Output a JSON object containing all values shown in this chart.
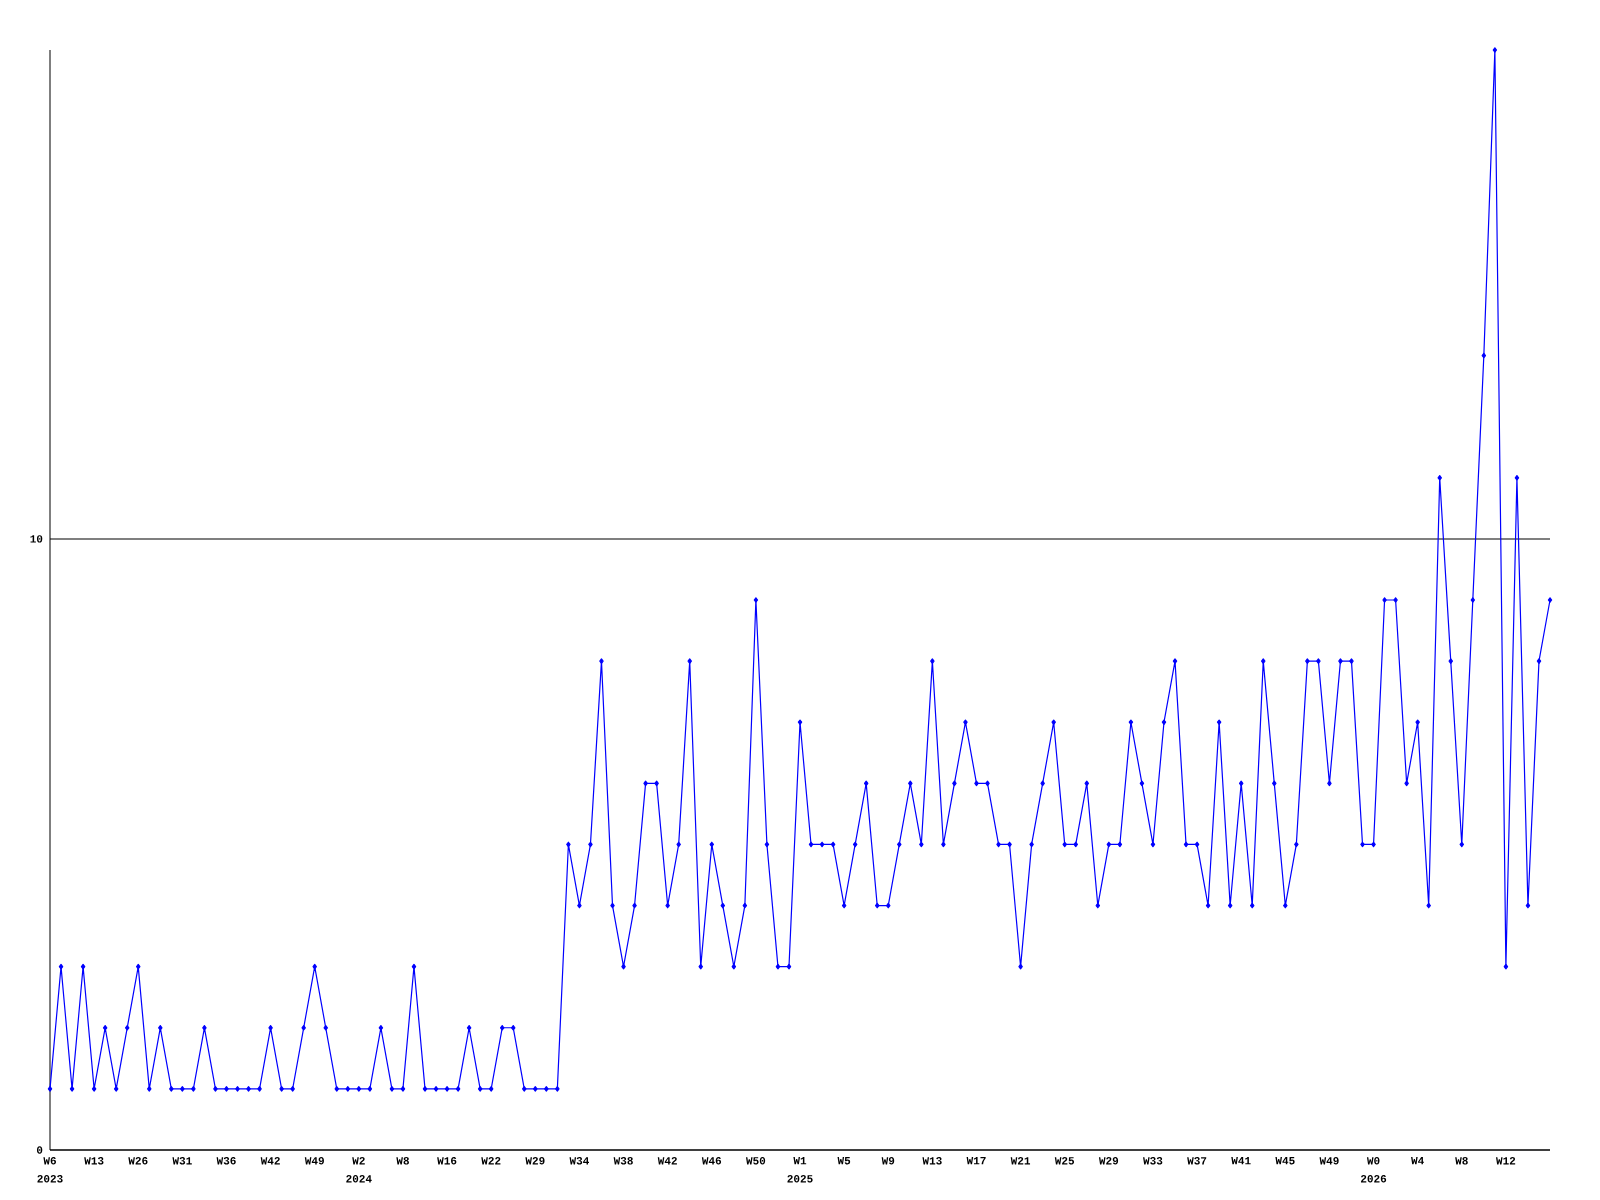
{
  "chart_data": {
    "type": "line",
    "categories": [
      "W6",
      null,
      null,
      null,
      "W13",
      null,
      null,
      null,
      "W26",
      null,
      null,
      null,
      "W31",
      null,
      null,
      null,
      "W36",
      null,
      null,
      null,
      "W42",
      null,
      null,
      null,
      "W49",
      null,
      null,
      null,
      "W2",
      null,
      null,
      null,
      "W8",
      null,
      null,
      null,
      "W16",
      null,
      null,
      null,
      "W22",
      null,
      null,
      null,
      "W29",
      null,
      null,
      null,
      "W34",
      null,
      null,
      null,
      "W38",
      null,
      null,
      null,
      "W42",
      null,
      null,
      null,
      "W46",
      null,
      null,
      null,
      "W50",
      null,
      null,
      null,
      "W1",
      null,
      null,
      null,
      "W5",
      null,
      null,
      null,
      "W9",
      null,
      null,
      null,
      "W13",
      null,
      null,
      null,
      "W17",
      null,
      null,
      null,
      "W21",
      null,
      null,
      null,
      "W25",
      null,
      null,
      null,
      "W29",
      null,
      null,
      null,
      "W33",
      null,
      null,
      null,
      "W37",
      null,
      null,
      null,
      "W41",
      null,
      null,
      null,
      "W45",
      null,
      null,
      null,
      "W49",
      null,
      null,
      null,
      "W0",
      null,
      null,
      null,
      "W4",
      null,
      null,
      null,
      "W8",
      null,
      null,
      null,
      "W12",
      null,
      null,
      null,
      null
    ],
    "series": [
      {
        "color": "#0000ff",
        "values": [
          1,
          3,
          1,
          3,
          1,
          2,
          1,
          2,
          3,
          1,
          2,
          1,
          1,
          1,
          2,
          1,
          1,
          1,
          1,
          1,
          2,
          1,
          1,
          2,
          3,
          2,
          1,
          1,
          1,
          1,
          2,
          1,
          1,
          3,
          1,
          1,
          1,
          1,
          2,
          1,
          1,
          2,
          2,
          1,
          1,
          1,
          1,
          5,
          4,
          5,
          8,
          4,
          3,
          4,
          6,
          6,
          4,
          5,
          8,
          3,
          5,
          4,
          3,
          4,
          9,
          5,
          3,
          3,
          7,
          5,
          5,
          5,
          4,
          5,
          6,
          4,
          4,
          5,
          6,
          5,
          8,
          5,
          6,
          7,
          6,
          6,
          5,
          5,
          3,
          5,
          6,
          7,
          5,
          5,
          6,
          4,
          5,
          5,
          7,
          6,
          5,
          7,
          8,
          5,
          5,
          4,
          7,
          4,
          6,
          4,
          8,
          6,
          4,
          5,
          8,
          8,
          6,
          8,
          8,
          5,
          5,
          9,
          9,
          6,
          7,
          4,
          11,
          8,
          5,
          9,
          13,
          18,
          3,
          11,
          4,
          8,
          9
        ]
      }
    ],
    "ylim": [
      0,
      18
    ],
    "yticks": [
      0,
      10
    ],
    "grid": "y",
    "marker": "diamond",
    "line_style": "solid",
    "annotations": [
      "2023",
      "2024",
      "2025",
      "2026"
    ]
  }
}
